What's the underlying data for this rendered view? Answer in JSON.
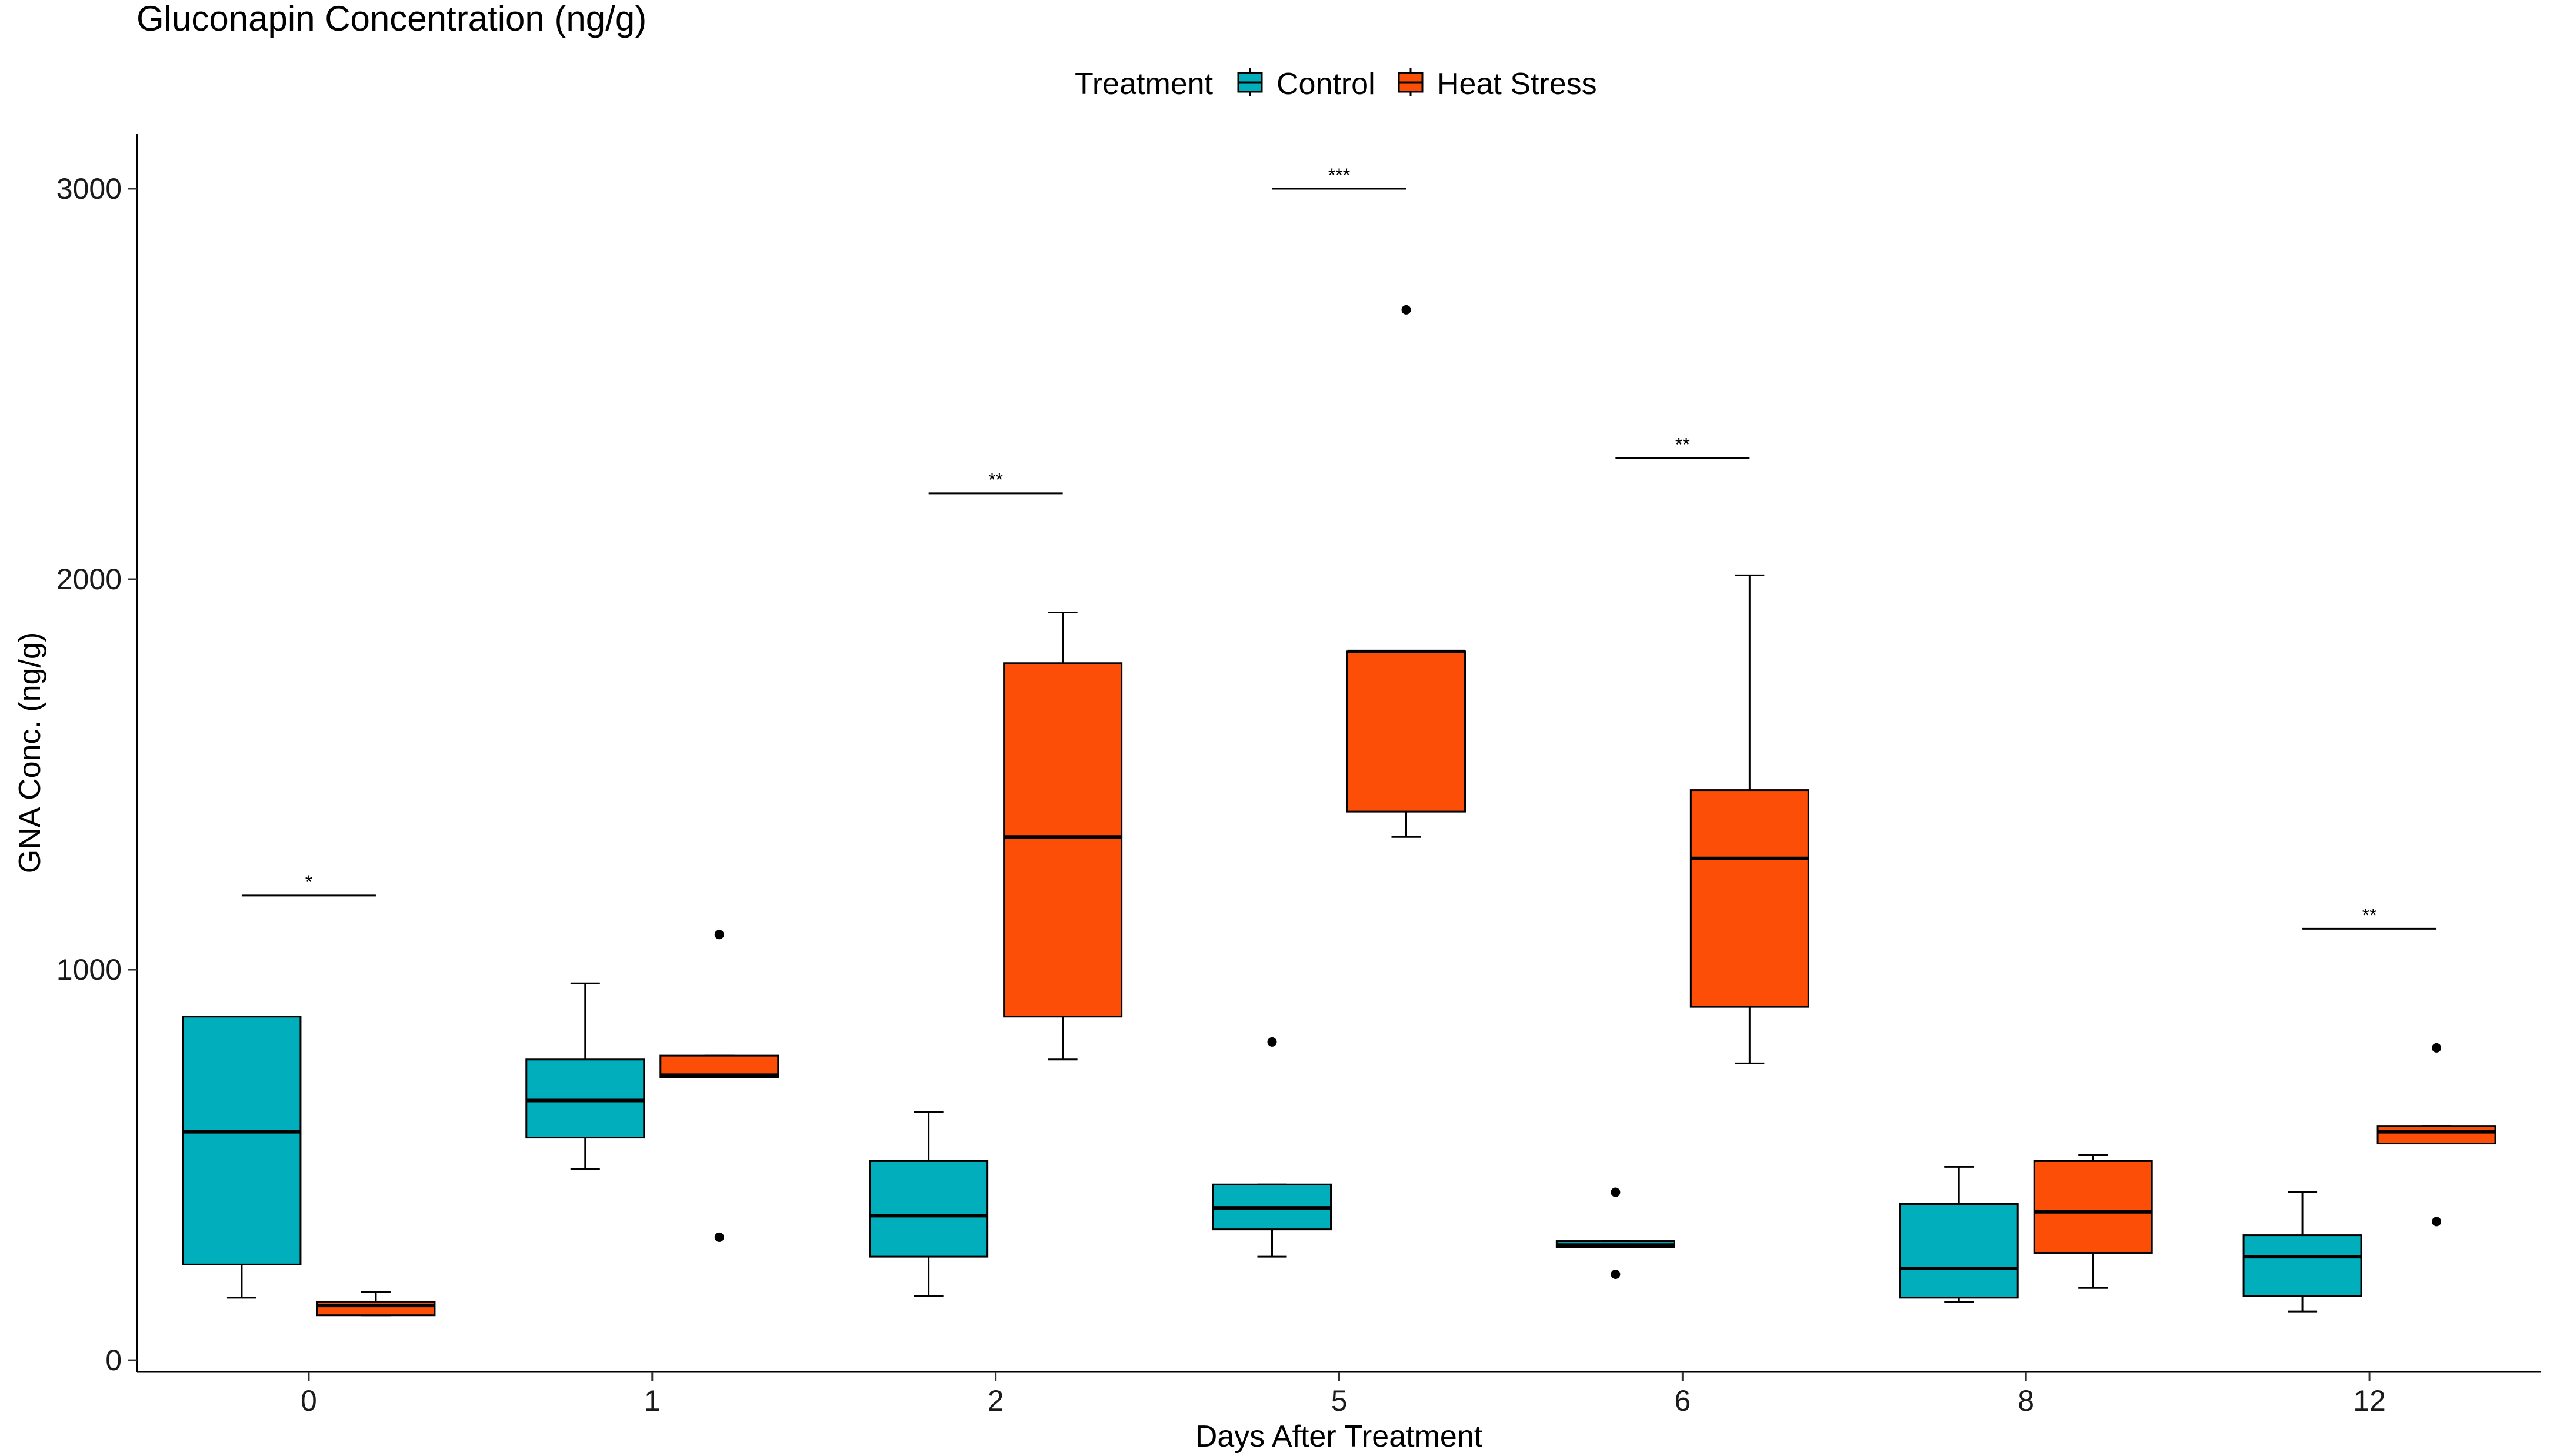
{
  "chart_data": {
    "type": "boxplot",
    "title": "Gluconapin Concentration (ng/g)",
    "xlabel": "Days After Treatment",
    "ylabel": "GNA Conc. (ng/g)",
    "ylim": [
      -30,
      3140
    ],
    "yticks": [
      0,
      1000,
      2000,
      3000
    ],
    "categories": [
      "0",
      "1",
      "2",
      "5",
      "6",
      "8",
      "12"
    ],
    "legend": {
      "title": "Treatment",
      "position": "top",
      "entries": [
        {
          "name": "Control",
          "color": "#00AFBB"
        },
        {
          "name": "Heat Stress",
          "color": "#FC4E07"
        }
      ]
    },
    "series": [
      {
        "name": "Control",
        "color": "#00AFBB",
        "boxes": [
          {
            "category": "0",
            "whisker_low": 160,
            "q1": 245,
            "median": 585,
            "q3": 880,
            "whisker_high": 880,
            "outliers": []
          },
          {
            "category": "1",
            "whisker_low": 490,
            "q1": 570,
            "median": 665,
            "q3": 770,
            "whisker_high": 965,
            "outliers": []
          },
          {
            "category": "2",
            "whisker_low": 165,
            "q1": 265,
            "median": 370,
            "q3": 510,
            "whisker_high": 635,
            "outliers": []
          },
          {
            "category": "5",
            "whisker_low": 265,
            "q1": 335,
            "median": 390,
            "q3": 450,
            "whisker_high": 450,
            "outliers": [
              815
            ]
          },
          {
            "category": "6",
            "whisker_low": 290,
            "q1": 290,
            "median": 295,
            "q3": 305,
            "whisker_high": 305,
            "outliers": [
              430,
              220
            ]
          },
          {
            "category": "8",
            "whisker_low": 150,
            "q1": 160,
            "median": 235,
            "q3": 400,
            "whisker_high": 495,
            "outliers": []
          },
          {
            "category": "12",
            "whisker_low": 125,
            "q1": 165,
            "median": 265,
            "q3": 320,
            "whisker_high": 430,
            "outliers": []
          }
        ]
      },
      {
        "name": "Heat Stress",
        "color": "#FC4E07",
        "boxes": [
          {
            "category": "0",
            "whisker_low": 115,
            "q1": 115,
            "median": 140,
            "q3": 150,
            "whisker_high": 175,
            "outliers": []
          },
          {
            "category": "1",
            "whisker_low": 725,
            "q1": 725,
            "median": 730,
            "q3": 780,
            "whisker_high": 780,
            "outliers": [
              1090,
              315
            ]
          },
          {
            "category": "2",
            "whisker_low": 770,
            "q1": 880,
            "median": 1340,
            "q3": 1785,
            "whisker_high": 1915,
            "outliers": []
          },
          {
            "category": "5",
            "whisker_low": 1340,
            "q1": 1405,
            "median": 1815,
            "q3": 1815,
            "whisker_high": 1815,
            "outliers": [
              2690
            ]
          },
          {
            "category": "6",
            "whisker_low": 760,
            "q1": 905,
            "median": 1285,
            "q3": 1460,
            "whisker_high": 2010,
            "outliers": []
          },
          {
            "category": "8",
            "whisker_low": 185,
            "q1": 275,
            "median": 380,
            "q3": 510,
            "whisker_high": 525,
            "outliers": []
          },
          {
            "category": "12",
            "whisker_low": 555,
            "q1": 555,
            "median": 585,
            "q3": 600,
            "whisker_high": 600,
            "outliers": [
              800,
              355
            ]
          }
        ]
      }
    ],
    "annotations": [
      {
        "category": "0",
        "y": 1190,
        "label": "*"
      },
      {
        "category": "2",
        "y": 2220,
        "label": "**"
      },
      {
        "category": "5",
        "y": 3000,
        "label": "***"
      },
      {
        "category": "6",
        "y": 2310,
        "label": "**"
      },
      {
        "category": "12",
        "y": 1105,
        "label": "**"
      }
    ]
  }
}
